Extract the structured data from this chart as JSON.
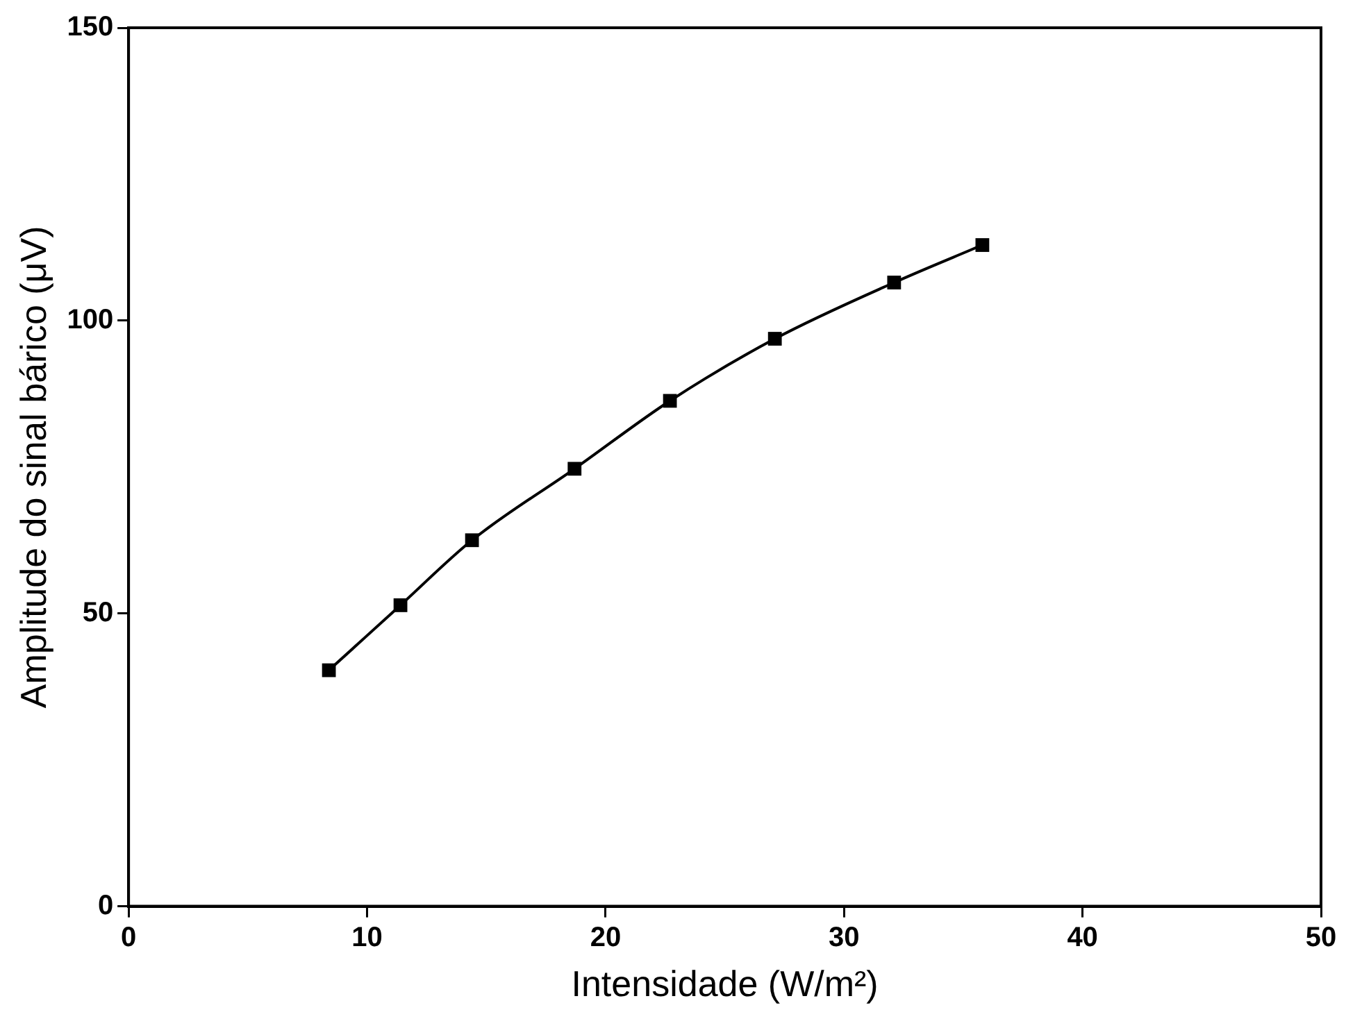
{
  "chart_data": {
    "type": "line",
    "xlabel": "Intensidade (W/m²)",
    "ylabel": "Amplitude do sinal bárico (μV)",
    "x": [
      8.4,
      11.4,
      14.4,
      18.7,
      22.7,
      27.1,
      32.1,
      35.8
    ],
    "series": [
      {
        "color": "#000000",
        "values": [
          40.3,
          51.4,
          62.5,
          74.7,
          86.3,
          96.9,
          106.5,
          112.9
        ]
      }
    ],
    "xlim": [
      0,
      50
    ],
    "xticks": [
      0,
      10,
      20,
      30,
      40,
      50
    ],
    "ylim": [
      0,
      150
    ],
    "yticks": [
      0,
      50,
      100,
      150
    ],
    "grid": false,
    "legend": false,
    "marker": "square",
    "line_style": "solid"
  }
}
